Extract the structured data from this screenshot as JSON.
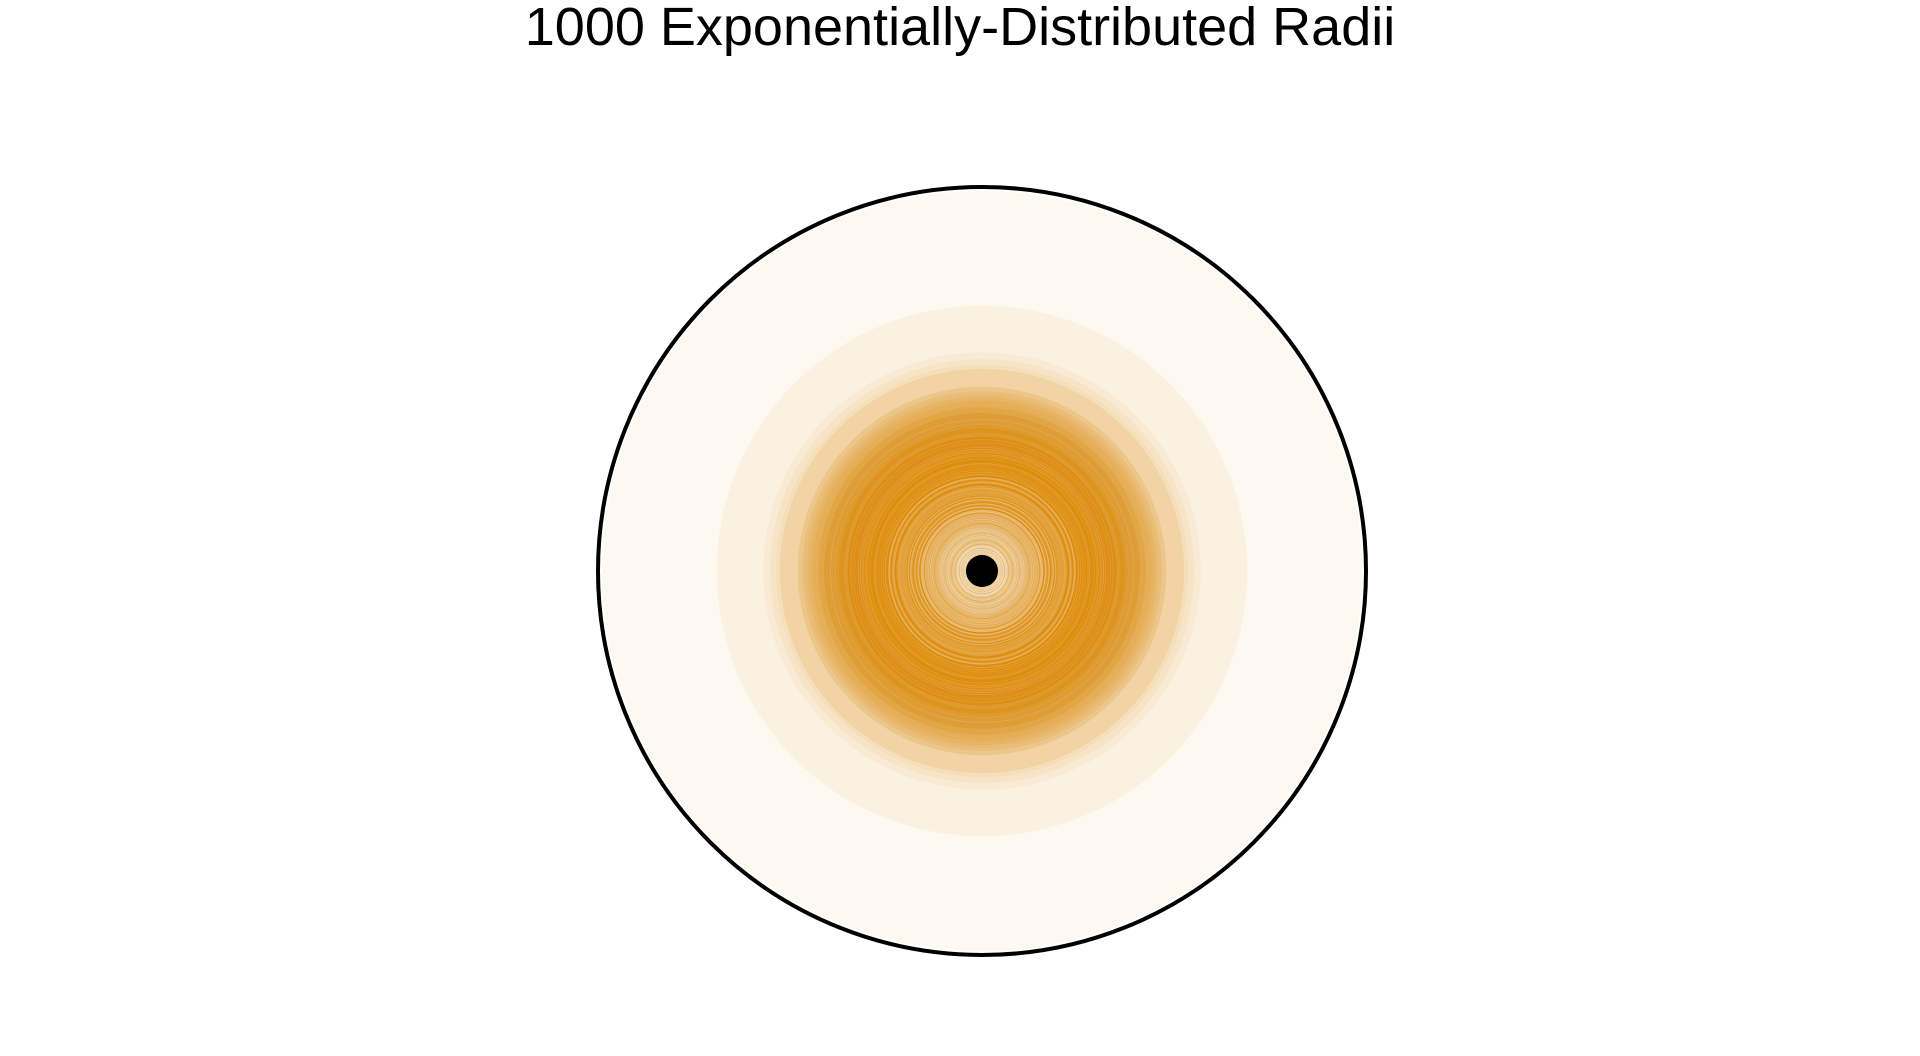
{
  "chart_data": {
    "type": "scatter",
    "title": "1000 Exponentially-Distributed Radii",
    "xlabel": "",
    "ylabel": "",
    "n_circles": 1000,
    "distribution": "exponential",
    "circle_color": "#E08A00",
    "circle_alpha": 0.06,
    "outline_color": "#000000",
    "center_marker_color": "#000000",
    "axes_visible": false,
    "grid": false,
    "legend": "none"
  }
}
